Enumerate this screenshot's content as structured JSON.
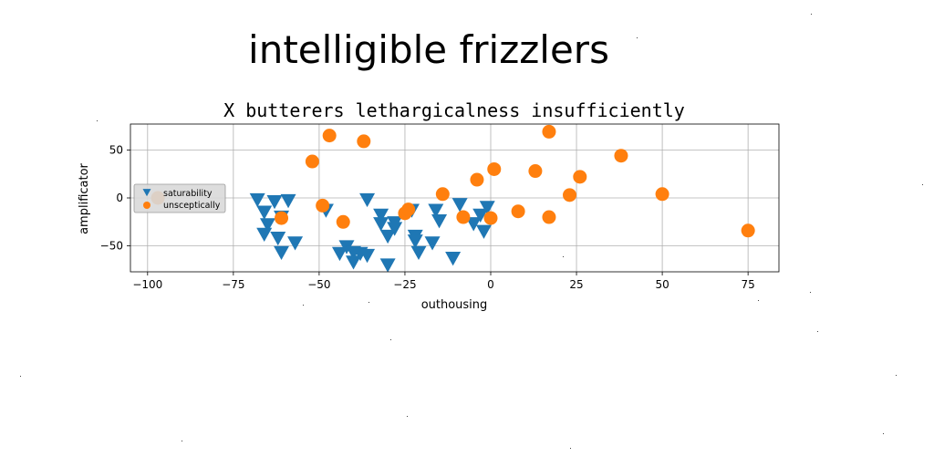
{
  "suptitle": "intelligible frizzlers",
  "chart_data": {
    "type": "scatter",
    "title": "X butterers lethargicalness insufficiently",
    "xlabel": "outhousing",
    "ylabel": "amplificator",
    "xlim": [
      -105,
      84
    ],
    "ylim": [
      -77,
      77
    ],
    "xticks": [
      -100,
      -75,
      -50,
      -25,
      0,
      25,
      50,
      75
    ],
    "yticks": [
      -50,
      0,
      50
    ],
    "grid": true,
    "legend_position": "center-left",
    "series": [
      {
        "name": "saturability",
        "marker": "triangle-down",
        "color": "#1f77b4",
        "points": [
          [
            -68,
            -2
          ],
          [
            -66,
            -15
          ],
          [
            -66,
            -38
          ],
          [
            -65,
            -28
          ],
          [
            -63,
            -4
          ],
          [
            -62,
            -42
          ],
          [
            -61,
            -20
          ],
          [
            -61,
            -57
          ],
          [
            -59,
            -3
          ],
          [
            -57,
            -47
          ],
          [
            -48,
            -13
          ],
          [
            -44,
            -58
          ],
          [
            -42,
            -51
          ],
          [
            -40,
            -57
          ],
          [
            -40,
            -67
          ],
          [
            -38,
            -58
          ],
          [
            -36,
            -60
          ],
          [
            -36,
            -2
          ],
          [
            -32,
            -18
          ],
          [
            -32,
            -27
          ],
          [
            -30,
            -40
          ],
          [
            -30,
            -70
          ],
          [
            -28,
            -32
          ],
          [
            -28,
            -26
          ],
          [
            -23,
            -13
          ],
          [
            -22,
            -40
          ],
          [
            -22,
            -45
          ],
          [
            -21,
            -57
          ],
          [
            -17,
            -47
          ],
          [
            -16,
            -13
          ],
          [
            -15,
            -24
          ],
          [
            -11,
            -63
          ],
          [
            -9,
            -7
          ],
          [
            -5,
            -27
          ],
          [
            -3,
            -18
          ],
          [
            -1,
            -10
          ],
          [
            -2,
            -35
          ]
        ]
      },
      {
        "name": "unsceptically",
        "marker": "circle",
        "color": "#ff7f0e",
        "points": [
          [
            -97,
            0
          ],
          [
            -61,
            -21
          ],
          [
            -52,
            38
          ],
          [
            -49,
            -8
          ],
          [
            -47,
            65
          ],
          [
            -43,
            -25
          ],
          [
            -37,
            59
          ],
          [
            -25,
            -16
          ],
          [
            -24,
            -12
          ],
          [
            -14,
            4
          ],
          [
            -8,
            -20
          ],
          [
            -4,
            19
          ],
          [
            0,
            -21
          ],
          [
            1,
            30
          ],
          [
            8,
            -14
          ],
          [
            13,
            28
          ],
          [
            17,
            69
          ],
          [
            17,
            -20
          ],
          [
            23,
            3
          ],
          [
            26,
            22
          ],
          [
            38,
            44
          ],
          [
            50,
            4
          ],
          [
            75,
            -34
          ]
        ]
      }
    ]
  }
}
